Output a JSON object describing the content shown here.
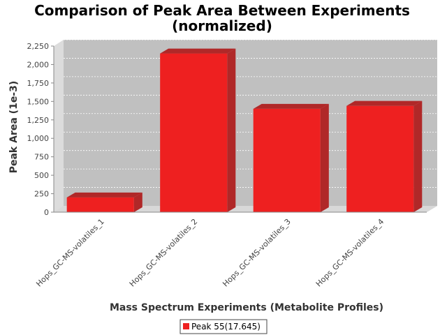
{
  "chart_data": {
    "type": "bar",
    "title": "Comparison of Peak Area Between Experiments",
    "subtitle": "(normalized)",
    "xlabel": "Mass Spectrum Experiments (Metabolite Profiles)",
    "ylabel": "Peak Area (1e-3)",
    "categories": [
      "Hops_GC-MS-volatiles_1",
      "Hops_GC-MS-volatiles_2",
      "Hops_GC-MS-volatiles_3",
      "Hops_GC-MS-volatiles_4"
    ],
    "series": [
      {
        "name": "Peak 55(17.645)",
        "values": [
          200,
          2150,
          1400,
          1440
        ],
        "color": "#ee2020"
      }
    ],
    "ylim": [
      0,
      2250
    ],
    "yticks": [
      0,
      250,
      500,
      750,
      1000,
      1250,
      1500,
      1750,
      2000,
      2250
    ],
    "ytick_labels": [
      "0",
      "250",
      "500",
      "750",
      "1,000",
      "1,250",
      "1,500",
      "1,750",
      "2,000",
      "2,250"
    ],
    "grid": true,
    "legend_position": "bottom",
    "plot_background": "#c0c0c0"
  }
}
